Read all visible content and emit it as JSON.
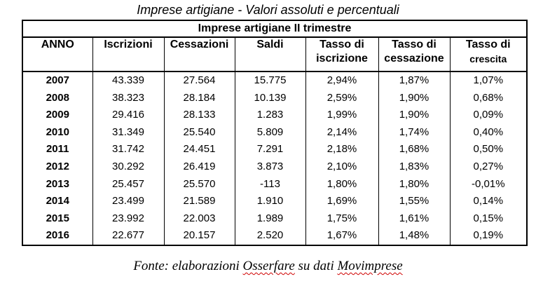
{
  "caption": "Imprese artigiane - Valori assoluti e percentuali",
  "table": {
    "title": "Imprese artigiane II trimestre",
    "headers": [
      {
        "line1": "ANNO",
        "line2": ""
      },
      {
        "line1": "Iscrizioni",
        "line2": ""
      },
      {
        "line1": "Cessazioni",
        "line2": ""
      },
      {
        "line1": "Saldi",
        "line2": ""
      },
      {
        "line1": "Tasso di",
        "line2": "iscrizione"
      },
      {
        "line1": "Tasso di",
        "line2": "cessazione"
      },
      {
        "line1": "Tasso di",
        "line2": "crescita"
      }
    ],
    "rows": [
      [
        "2007",
        "43.339",
        "27.564",
        "15.775",
        "2,94%",
        "1,87%",
        "1,07%"
      ],
      [
        "2008",
        "38.323",
        "28.184",
        "10.139",
        "2,59%",
        "1,90%",
        "0,68%"
      ],
      [
        "2009",
        "29.416",
        "28.133",
        "1.283",
        "1,99%",
        "1,90%",
        "0,09%"
      ],
      [
        "2010",
        "31.349",
        "25.540",
        "5.809",
        "2,14%",
        "1,74%",
        "0,40%"
      ],
      [
        "2011",
        "31.742",
        "24.451",
        "7.291",
        "2,18%",
        "1,68%",
        "0,50%"
      ],
      [
        "2012",
        "30.292",
        "26.419",
        "3.873",
        "2,10%",
        "1,83%",
        "0,27%"
      ],
      [
        "2013",
        "25.457",
        "25.570",
        "-113",
        "1,80%",
        "1,80%",
        "-0,01%"
      ],
      [
        "2014",
        "23.499",
        "21.589",
        "1.910",
        "1,69%",
        "1,55%",
        "0,14%"
      ],
      [
        "2015",
        "23.992",
        "22.003",
        "1.989",
        "1,75%",
        "1,61%",
        "0,15%"
      ],
      [
        "2016",
        "22.677",
        "20.157",
        "2.520",
        "1,67%",
        "1,48%",
        "0,19%"
      ]
    ]
  },
  "source": {
    "prefix": "Fonte: elaborazioni ",
    "word1": "Osserfare",
    "middle": " su dati ",
    "word2": "Movimprese"
  }
}
